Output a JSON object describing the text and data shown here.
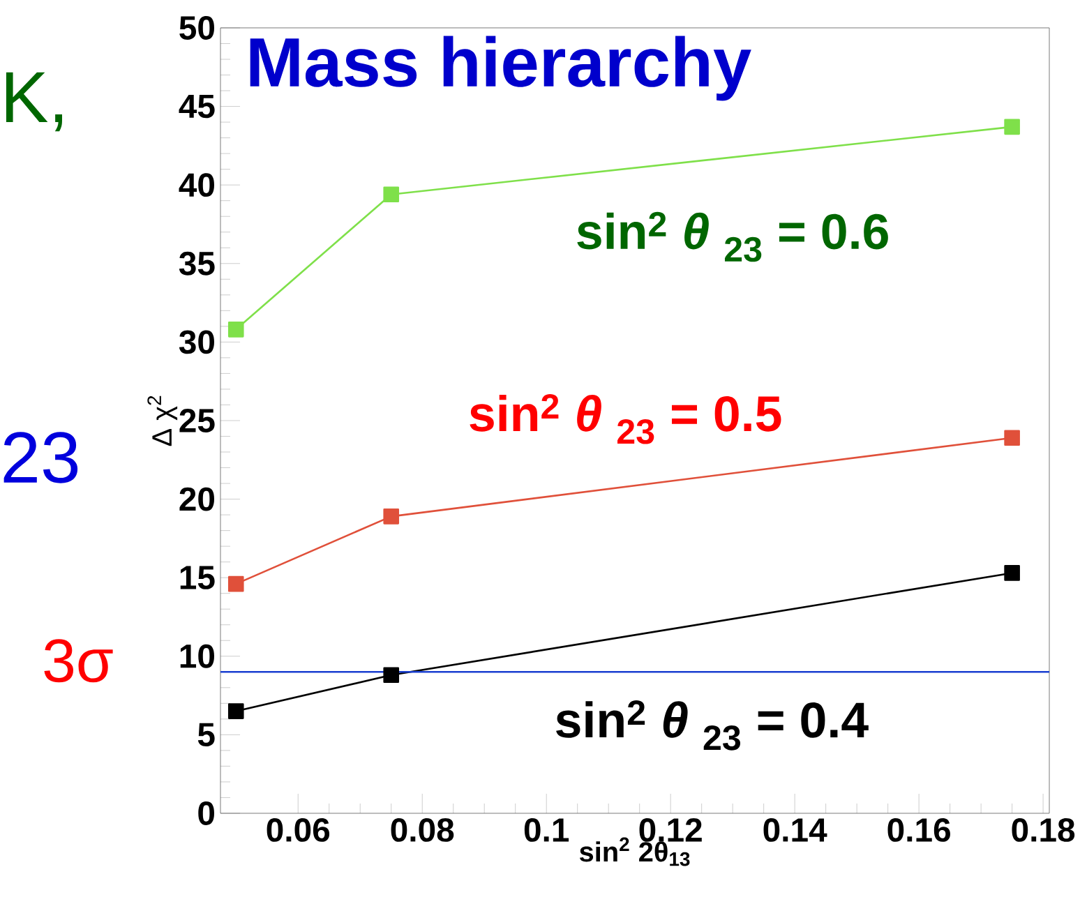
{
  "chart_data": {
    "type": "line",
    "title": "Mass hierarchy",
    "xlabel": "sin$^{2}$ 2θ$_{13}$",
    "ylabel": "Δ χ$^{2}$",
    "x": [
      0.05,
      0.075,
      0.175
    ],
    "series": [
      {
        "name": "sin$^{2}$ *θ* $_{23}$ = 0.6",
        "color": "#7fe04a",
        "values": [
          30.8,
          39.4,
          43.7
        ]
      },
      {
        "name": "sin$^{2}$ *θ* $_{23}$ = 0.5",
        "color": "#e0503a",
        "values": [
          14.6,
          18.9,
          23.9
        ]
      },
      {
        "name": "sin$^{2}$ *θ* $_{23}$ = 0.4",
        "color": "#000000",
        "values": [
          6.5,
          8.8,
          15.3
        ]
      }
    ],
    "xlim": [
      0.0475,
      0.181
    ],
    "ylim": [
      0,
      50
    ],
    "xticks": [
      0.06,
      0.08,
      0.1,
      0.12,
      0.14,
      0.16,
      0.18
    ],
    "yticks": [
      0,
      5,
      10,
      15,
      20,
      25,
      30,
      35,
      40,
      45,
      50
    ],
    "ref_lines": [
      {
        "axis": "y",
        "value": 9,
        "label": "3σ",
        "color": "#1a3fd0"
      }
    ],
    "annotations": [
      "K,",
      "23"
    ],
    "marker": "square",
    "line_style": "solid"
  }
}
